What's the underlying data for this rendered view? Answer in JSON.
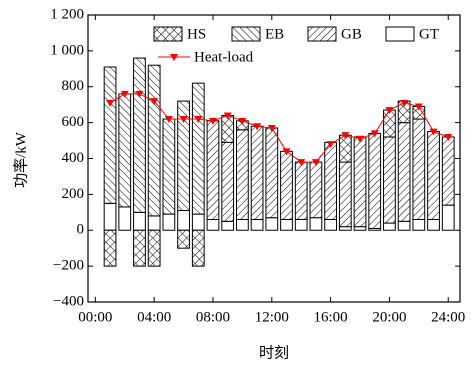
{
  "chart_data": {
    "type": "stacked-bar-line",
    "xlabel": "时刻",
    "ylabel": "功率/kW",
    "x": [
      1,
      2,
      3,
      4,
      5,
      6,
      7,
      8,
      9,
      10,
      11,
      12,
      13,
      14,
      15,
      16,
      17,
      18,
      19,
      20,
      21,
      22,
      23,
      24
    ],
    "xlim": [
      -0.5,
      24.8
    ],
    "xticks": [
      {
        "value": 0,
        "label": "00:00"
      },
      {
        "value": 4,
        "label": "04:00"
      },
      {
        "value": 8,
        "label": "08:00"
      },
      {
        "value": 12,
        "label": "12:00"
      },
      {
        "value": 16,
        "label": "16:00"
      },
      {
        "value": 20,
        "label": "20:00"
      },
      {
        "value": 24,
        "label": "24:00"
      }
    ],
    "ylim": [
      -400,
      1200
    ],
    "yticks": [
      {
        "value": -400,
        "label": "−400"
      },
      {
        "value": -200,
        "label": "−200"
      },
      0,
      200,
      400,
      600,
      800,
      {
        "value": 1000,
        "label": "1 000"
      },
      {
        "value": 1200,
        "label": "1 200"
      }
    ],
    "grid": false,
    "series": [
      {
        "name": "HS",
        "color": "#000000",
        "hatch": "cross",
        "values": [
          -200,
          0,
          -200,
          -200,
          0,
          -100,
          -200,
          0,
          150,
          50,
          0,
          0,
          0,
          0,
          0,
          0,
          150,
          0,
          0,
          150,
          120,
          70,
          0,
          0
        ]
      },
      {
        "name": "EB",
        "color": "#000000",
        "hatch": "back",
        "values": [
          760,
          630,
          860,
          840,
          530,
          610,
          730,
          0,
          0,
          0,
          0,
          0,
          0,
          0,
          0,
          0,
          0,
          0,
          0,
          0,
          0,
          0,
          0,
          0
        ]
      },
      {
        "name": "GB",
        "color": "#000000",
        "hatch": "fwd",
        "values": [
          0,
          0,
          0,
          0,
          0,
          0,
          0,
          550,
          440,
          500,
          520,
          500,
          380,
          320,
          310,
          430,
          360,
          500,
          530,
          480,
          550,
          560,
          490,
          380
        ]
      },
      {
        "name": "GT",
        "color": "#000000",
        "hatch": "none",
        "values": [
          150,
          130,
          100,
          80,
          90,
          110,
          90,
          60,
          50,
          60,
          60,
          70,
          60,
          60,
          70,
          60,
          20,
          20,
          10,
          40,
          50,
          60,
          60,
          140
        ]
      }
    ],
    "line": {
      "name": "Heat-load",
      "color": "#ff0000",
      "values": [
        710,
        760,
        760,
        720,
        620,
        620,
        620,
        610,
        640,
        610,
        580,
        570,
        440,
        380,
        380,
        480,
        530,
        510,
        540,
        670,
        710,
        690,
        550,
        520
      ]
    }
  }
}
